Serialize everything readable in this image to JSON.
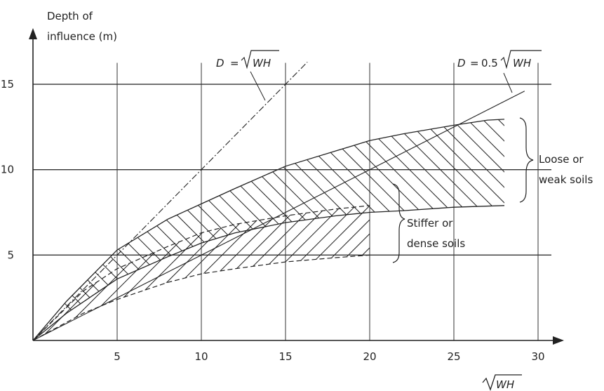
{
  "chart_data": {
    "type": "line",
    "ylabel_line1": "Depth of",
    "ylabel_line2": "influence (m)",
    "xlabel_sqrt": "WH",
    "x_ticks": [
      5,
      10,
      15,
      20,
      25,
      30
    ],
    "y_ticks": [
      5,
      10,
      15
    ],
    "xlim": [
      0,
      31
    ],
    "ylim": [
      0,
      16.5
    ],
    "grid": true,
    "curves": {
      "line_d_sqrt": {
        "name": "D = √WH",
        "x": [
          0,
          16.3
        ],
        "y": [
          0,
          16.3
        ]
      },
      "line_d_half": {
        "name": "D = 0.5 √WH",
        "x": [
          0,
          29.2
        ],
        "y": [
          0,
          14.6
        ]
      },
      "loose_upper": {
        "x": [
          0,
          2,
          5,
          8,
          10,
          12,
          15,
          18,
          20,
          22,
          25,
          27,
          28
        ],
        "y": [
          0,
          2.3,
          5.3,
          7.1,
          8.0,
          8.9,
          10.2,
          11.1,
          11.7,
          12.1,
          12.6,
          12.9,
          12.95
        ]
      },
      "loose_lower": {
        "x": [
          0,
          2,
          5,
          8,
          10,
          12,
          15,
          18,
          20,
          22,
          25,
          28
        ],
        "y": [
          0,
          1.6,
          3.6,
          4.9,
          5.7,
          6.3,
          6.9,
          7.3,
          7.5,
          7.6,
          7.8,
          7.9
        ]
      },
      "stiff_upper": {
        "x": [
          0,
          3,
          5,
          8,
          10,
          12,
          15,
          18,
          20
        ],
        "y": [
          0,
          2.9,
          4.2,
          5.5,
          6.3,
          6.8,
          7.3,
          7.7,
          7.9
        ]
      },
      "stiff_lower": {
        "x": [
          0,
          3,
          5,
          8,
          10,
          12,
          15,
          18,
          20
        ],
        "y": [
          0,
          1.6,
          2.4,
          3.4,
          3.9,
          4.2,
          4.6,
          4.85,
          5.0
        ]
      }
    },
    "annotations": {
      "formula1_lhs": "D",
      "formula1_rhs": "WH",
      "formula2_lhs": "D",
      "formula2_coef": "0.5",
      "formula2_rhs": "WH",
      "loose_line1": "Loose or",
      "loose_line2": "weak soils",
      "stiff_line1": "Stiffer or",
      "stiff_line2": "dense soils"
    }
  }
}
